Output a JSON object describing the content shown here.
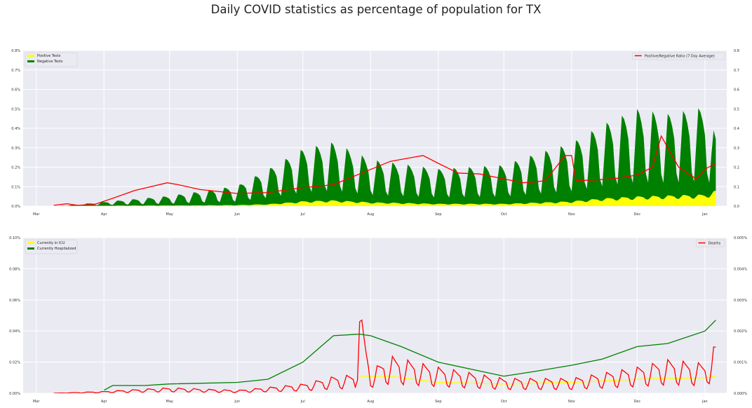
{
  "figure": {
    "title": "Daily COVID statistics as percentage of population for TX"
  },
  "chart_data": [
    {
      "type": "area",
      "x_months": [
        "Mar",
        "Apr",
        "May",
        "Jun",
        "Jul",
        "Aug",
        "Sep",
        "Oct",
        "Nov",
        "Dec",
        "Jan"
      ],
      "ylim_left": [
        0,
        0.8
      ],
      "yticks_left": [
        "0.0%",
        "0.1%",
        "0.2%",
        "0.3%",
        "0.4%",
        "0.5%",
        "0.6%",
        "0.7%",
        "0.8%"
      ],
      "ylim_right": [
        0,
        0.8
      ],
      "yticks_right": [
        "0.0",
        "0.1",
        "0.2",
        "0.3",
        "0.4",
        "0.5",
        "0.6",
        "0.7",
        "0.8"
      ],
      "legend_left": [
        {
          "name": "Positive Tests",
          "color": "#ffff00"
        },
        {
          "name": "Negative Tests",
          "color": "#008000"
        }
      ],
      "legend_right": [
        {
          "name": "Positive/Negative Ratio (7 Day Average)",
          "color": "#ff0000"
        }
      ],
      "series": [
        {
          "name": "Positive Tests",
          "color": "#ffff00",
          "points": [
            [
              "Mar 12",
              0
            ],
            [
              "Apr 1",
              0.002
            ],
            [
              "May 1",
              0.003
            ],
            [
              "Jun 1",
              0.005
            ],
            [
              "Jun 15",
              0.01
            ],
            [
              "Jul 1",
              0.025
            ],
            [
              "Jul 15",
              0.03
            ],
            [
              "Aug 1",
              0.02
            ],
            [
              "Sep 1",
              0.012
            ],
            [
              "Oct 1",
              0.012
            ],
            [
              "Nov 1",
              0.025
            ],
            [
              "Nov 15",
              0.04
            ],
            [
              "Dec 1",
              0.05
            ],
            [
              "Dec 15",
              0.055
            ],
            [
              "Jan 1",
              0.06
            ],
            [
              "Jan 6",
              0.08
            ]
          ]
        },
        {
          "name": "Negative Tests",
          "color": "#008000",
          "points": [
            [
              "Mar 12",
              0
            ],
            [
              "Apr 1",
              0.02
            ],
            [
              "May 1",
              0.05
            ],
            [
              "Jun 1",
              0.1
            ],
            [
              "Jul 1",
              0.27
            ],
            [
              "Jul 15",
              0.3
            ],
            [
              "Aug 1",
              0.22
            ],
            [
              "Sep 1",
              0.18
            ],
            [
              "Oct 1",
              0.2
            ],
            [
              "Oct 15",
              0.25
            ],
            [
              "Nov 1",
              0.3
            ],
            [
              "Nov 15",
              0.38
            ],
            [
              "Dec 1",
              0.45
            ],
            [
              "Dec 15",
              0.42
            ],
            [
              "Jan 1",
              0.45
            ],
            [
              "Jan 6",
              0.28
            ]
          ]
        },
        {
          "name": "Positive/Negative Ratio (7 Day Average)",
          "color": "#ff0000",
          "axis": "right",
          "points": [
            [
              "Mar 9",
              0.004
            ],
            [
              "Mar 15",
              0.012
            ],
            [
              "Mar 20",
              0.004
            ],
            [
              "Mar 28",
              0.01
            ],
            [
              "Apr 5",
              0.04
            ],
            [
              "Apr 15",
              0.08
            ],
            [
              "Apr 30",
              0.12
            ],
            [
              "May 5",
              0.11
            ],
            [
              "May 15",
              0.085
            ],
            [
              "Jun 1",
              0.065
            ],
            [
              "Jun 15",
              0.07
            ],
            [
              "Jul 1",
              0.095
            ],
            [
              "Jul 15",
              0.11
            ],
            [
              "Jul 28",
              0.17
            ],
            [
              "Aug 10",
              0.23
            ],
            [
              "Aug 20",
              0.25
            ],
            [
              "Aug 25",
              0.26
            ],
            [
              "Sep 1",
              0.22
            ],
            [
              "Sep 10",
              0.17
            ],
            [
              "Sep 20",
              0.165
            ],
            [
              "Oct 1",
              0.14
            ],
            [
              "Oct 10",
              0.12
            ],
            [
              "Oct 20",
              0.13
            ],
            [
              "Oct 29",
              0.26
            ],
            [
              "Nov 1",
              0.26
            ],
            [
              "Nov 3",
              0.13
            ],
            [
              "Nov 20",
              0.14
            ],
            [
              "Dec 1",
              0.16
            ],
            [
              "Dec 8",
              0.2
            ],
            [
              "Dec 12",
              0.36
            ],
            [
              "Dec 20",
              0.2
            ],
            [
              "Dec 28",
              0.14
            ],
            [
              "Jan 1",
              0.19
            ],
            [
              "Jan 6",
              0.22
            ]
          ]
        }
      ]
    },
    {
      "type": "line",
      "x_months": [
        "Mar",
        "Apr",
        "May",
        "Jun",
        "Jul",
        "Aug",
        "Sep",
        "Oct",
        "Nov",
        "Dec",
        "Jan"
      ],
      "ylim_left": [
        0,
        0.1
      ],
      "yticks_left": [
        "0.00%",
        "0.02%",
        "0.04%",
        "0.06%",
        "0.08%",
        "0.10%"
      ],
      "ylim_right": [
        0,
        0.005
      ],
      "yticks_right": [
        "0.000%",
        "0.001%",
        "0.002%",
        "0.003%",
        "0.004%",
        "0.005%"
      ],
      "legend_left": [
        {
          "name": "Currently in ICU",
          "color": "#ffff00"
        },
        {
          "name": "Currently Hospitalized",
          "color": "#008000"
        }
      ],
      "legend_right": [
        {
          "name": "Deaths",
          "color": "#ff0000"
        }
      ],
      "series": [
        {
          "name": "Currently in ICU",
          "color": "#ffff00",
          "points": [
            [
              "Jul 27",
              0.011
            ],
            [
              "Aug 10",
              0.011
            ],
            [
              "Sep 1",
              0.007
            ],
            [
              "Oct 1",
              0.006
            ],
            [
              "Nov 1",
              0.007
            ],
            [
              "Dec 1",
              0.009
            ],
            [
              "Jan 1",
              0.01
            ],
            [
              "Jan 6",
              0.011
            ]
          ]
        },
        {
          "name": "Currently Hospitalized",
          "color": "#008000",
          "points": [
            [
              "Apr 1",
              0.002
            ],
            [
              "Apr 5",
              0.005
            ],
            [
              "Apr 20",
              0.005
            ],
            [
              "May 1",
              0.006
            ],
            [
              "Jun 1",
              0.007
            ],
            [
              "Jun 15",
              0.009
            ],
            [
              "Jul 1",
              0.02
            ],
            [
              "Jul 15",
              0.037
            ],
            [
              "Jul 27",
              0.038
            ],
            [
              "Aug 1",
              0.037
            ],
            [
              "Aug 15",
              0.03
            ],
            [
              "Sep 1",
              0.02
            ],
            [
              "Oct 1",
              0.011
            ],
            [
              "Oct 15",
              0.014
            ],
            [
              "Nov 1",
              0.018
            ],
            [
              "Nov 15",
              0.022
            ],
            [
              "Dec 1",
              0.03
            ],
            [
              "Dec 15",
              0.032
            ],
            [
              "Jan 1",
              0.04
            ],
            [
              "Jan 6",
              0.047
            ]
          ]
        },
        {
          "name": "Deaths",
          "color": "#ff0000",
          "axis": "right",
          "points": [
            [
              "Mar 9",
              0.0
            ],
            [
              "Apr 1",
              5e-05
            ],
            [
              "Apr 15",
              0.0001
            ],
            [
              "May 1",
              0.00015
            ],
            [
              "Jun 1",
              8e-05
            ],
            [
              "Jul 1",
              0.00025
            ],
            [
              "Jul 15",
              0.00045
            ],
            [
              "Jul 25",
              0.0005
            ],
            [
              "Jul 27",
              0.0023
            ],
            [
              "Aug 1",
              0.0006
            ],
            [
              "Aug 10",
              0.001
            ],
            [
              "Sep 1",
              0.0007
            ],
            [
              "Oct 1",
              0.0004
            ],
            [
              "Nov 1",
              0.0004
            ],
            [
              "Dec 1",
              0.0007
            ],
            [
              "Dec 15",
              0.0009
            ],
            [
              "Jan 1",
              0.0008
            ],
            [
              "Jan 6",
              0.00135
            ]
          ]
        }
      ]
    }
  ]
}
